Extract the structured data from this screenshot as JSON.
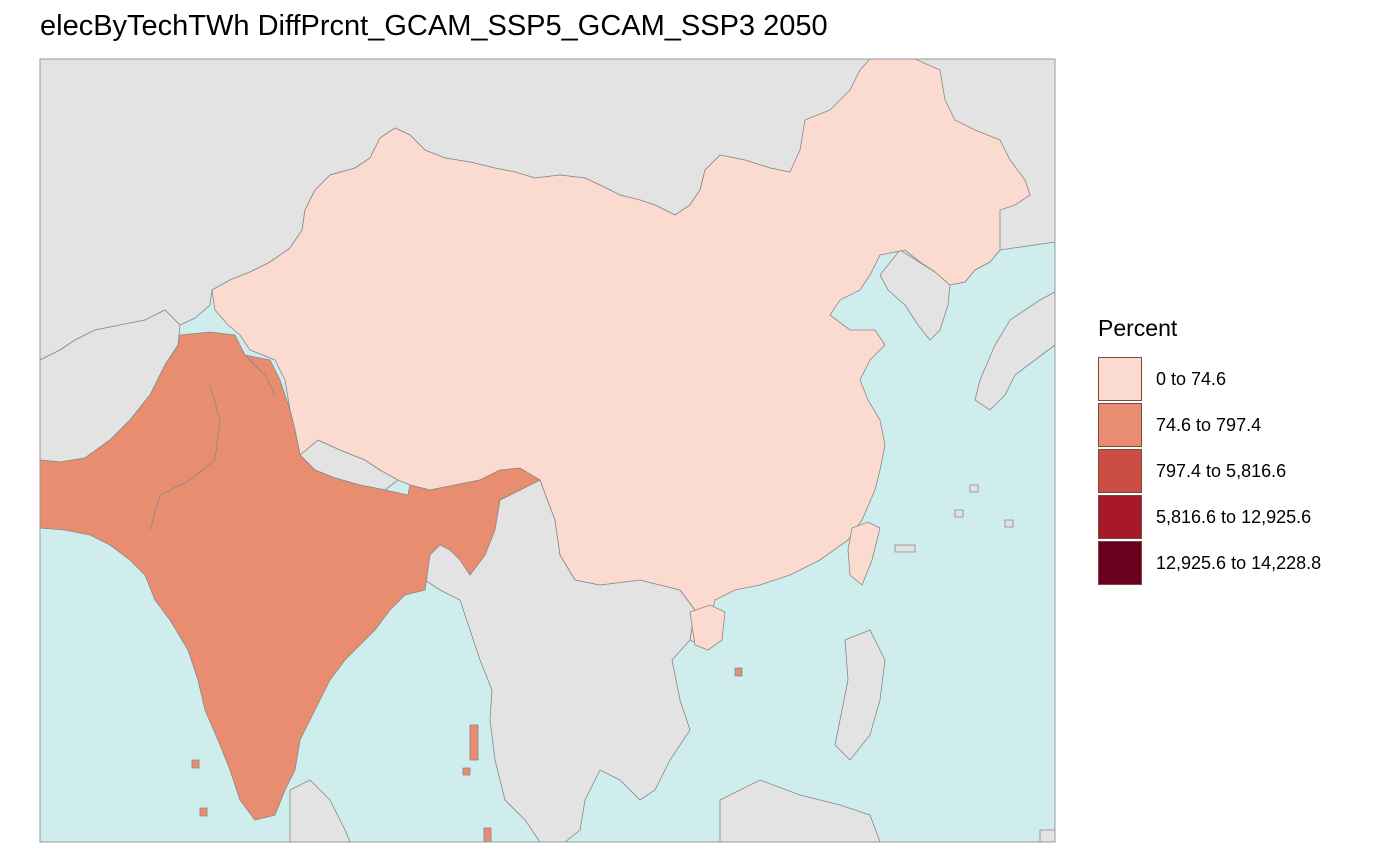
{
  "title": "elecByTechTWh DiffPrcnt_GCAM_SSP5_GCAM_SSP3 2050",
  "legend": {
    "title": "Percent",
    "items": [
      {
        "label": "0 to 74.6",
        "color": "#fbdbcf"
      },
      {
        "label": "74.6 to 797.4",
        "color": "#e98d70"
      },
      {
        "label": "797.4 to 5,816.6",
        "color": "#cc4e43"
      },
      {
        "label": "5,816.6 to 12,925.6",
        "color": "#a51729"
      },
      {
        "label": "12,925.6 to 14,228.8",
        "color": "#6a0020"
      }
    ]
  },
  "map": {
    "ocean_color": "#d0edee",
    "land_color": "#e3e3e3",
    "regions": [
      {
        "name": "China",
        "class": "0 to 74.6",
        "color": "#fbdbcf"
      },
      {
        "name": "India",
        "class": "74.6 to 797.4",
        "color": "#e98d70"
      }
    ]
  }
}
